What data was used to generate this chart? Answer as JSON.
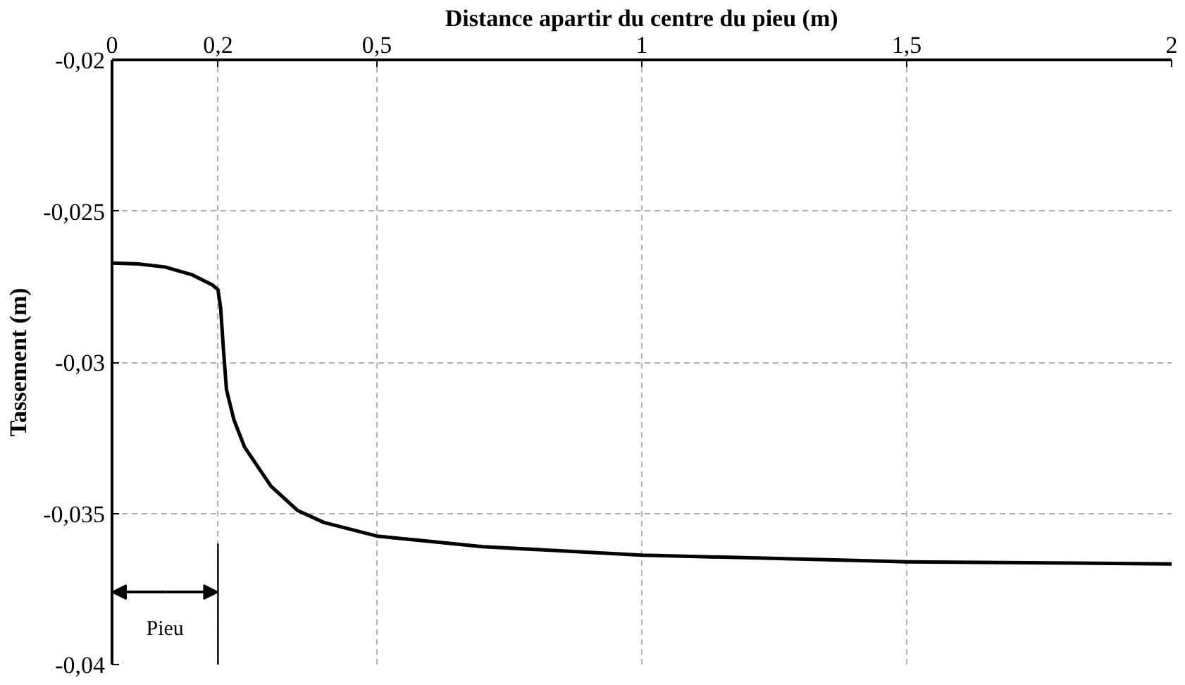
{
  "chart_data": {
    "type": "line",
    "xlabel": "Distance apartir du centre du pieu (m)",
    "ylabel": "Tassement (m)",
    "series": [
      {
        "color": "#000000",
        "x": [
          0,
          0.05,
          0.1,
          0.15,
          0.19,
          0.2,
          0.205,
          0.21,
          0.216,
          0.23,
          0.25,
          0.3,
          0.35,
          0.4,
          0.5,
          0.7,
          1,
          1.5,
          2
        ],
        "values": [
          -0.02672,
          -0.02675,
          -0.02685,
          -0.0271,
          -0.02745,
          -0.0276,
          -0.0282,
          -0.0295,
          -0.0309,
          -0.0319,
          -0.0328,
          -0.0341,
          -0.0349,
          -0.0353,
          -0.03575,
          -0.0361,
          -0.03638,
          -0.0366,
          -0.03667
        ]
      }
    ],
    "xlim": [
      0,
      2
    ],
    "ylim": [
      -0.04,
      -0.02
    ],
    "xticks": [
      0,
      {
        "value": 0.2,
        "label": "0,2"
      },
      {
        "value": 0.5,
        "label": "0,5"
      },
      1,
      {
        "value": 1.5,
        "label": "1,5"
      },
      2
    ],
    "yticks": [
      {
        "value": -0.04,
        "label": "-0,04"
      },
      {
        "value": -0.035,
        "label": "-0,035"
      },
      {
        "value": -0.03,
        "label": "-0,03"
      },
      {
        "value": -0.025,
        "label": "-0,025"
      },
      {
        "value": -0.02,
        "label": "-0,02"
      }
    ],
    "grid": true,
    "marker": "none",
    "line_style": "solid",
    "ref_lines": [
      {
        "axis": "x",
        "value": 0.2,
        "label": "Pieu",
        "color": "#000000"
      }
    ]
  }
}
